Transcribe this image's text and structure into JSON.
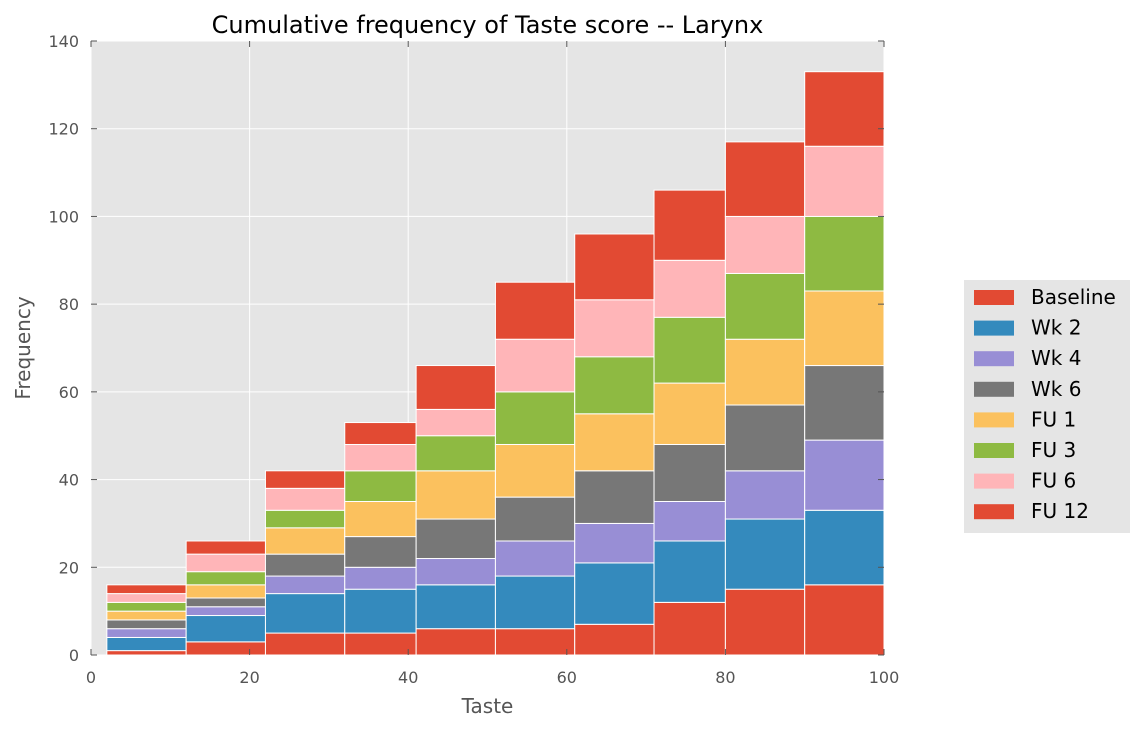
{
  "chart_data": {
    "type": "bar",
    "stacked": true,
    "title": "Cumulative frequency of Taste score -- Larynx",
    "xlabel": "Taste",
    "ylabel": "Frequency",
    "xlim": [
      0,
      100
    ],
    "ylim": [
      0,
      140
    ],
    "xticks": [
      "0",
      "20",
      "40",
      "60",
      "80",
      "100"
    ],
    "yticks": [
      "0",
      "20",
      "40",
      "60",
      "80",
      "100",
      "120",
      "140"
    ],
    "grid": true,
    "legend_position": "right",
    "bins": [
      [
        2,
        12
      ],
      [
        12,
        22
      ],
      [
        22,
        32
      ],
      [
        32,
        41
      ],
      [
        41,
        51
      ],
      [
        51,
        61
      ],
      [
        61,
        71
      ],
      [
        71,
        80
      ],
      [
        80,
        90
      ],
      [
        90,
        100
      ]
    ],
    "series": [
      {
        "name": "Baseline",
        "color": "#E24A33",
        "values": [
          1,
          3,
          5,
          5,
          6,
          6,
          7,
          12,
          15,
          16
        ]
      },
      {
        "name": "Wk 2",
        "color": "#348ABD",
        "values": [
          3,
          6,
          9,
          10,
          10,
          12,
          14,
          14,
          16,
          17
        ]
      },
      {
        "name": "Wk 4",
        "color": "#988ED5",
        "values": [
          2,
          2,
          4,
          5,
          6,
          8,
          9,
          9,
          11,
          16
        ]
      },
      {
        "name": "Wk 6",
        "color": "#777777",
        "values": [
          2,
          2,
          5,
          7,
          9,
          10,
          12,
          13,
          15,
          17
        ]
      },
      {
        "name": "FU 1",
        "color": "#FBC15E",
        "values": [
          2,
          3,
          6,
          8,
          11,
          12,
          13,
          14,
          15,
          17
        ]
      },
      {
        "name": "FU 3",
        "color": "#8EBA42",
        "values": [
          2,
          3,
          4,
          7,
          8,
          12,
          13,
          15,
          15,
          17
        ]
      },
      {
        "name": "FU 6",
        "color": "#FFB5B8",
        "values": [
          2,
          4,
          5,
          6,
          6,
          12,
          13,
          13,
          13,
          16
        ]
      },
      {
        "name": "FU 12",
        "color": "#E24A33",
        "values": [
          2,
          3,
          4,
          5,
          10,
          13,
          15,
          16,
          17,
          17
        ]
      }
    ]
  }
}
